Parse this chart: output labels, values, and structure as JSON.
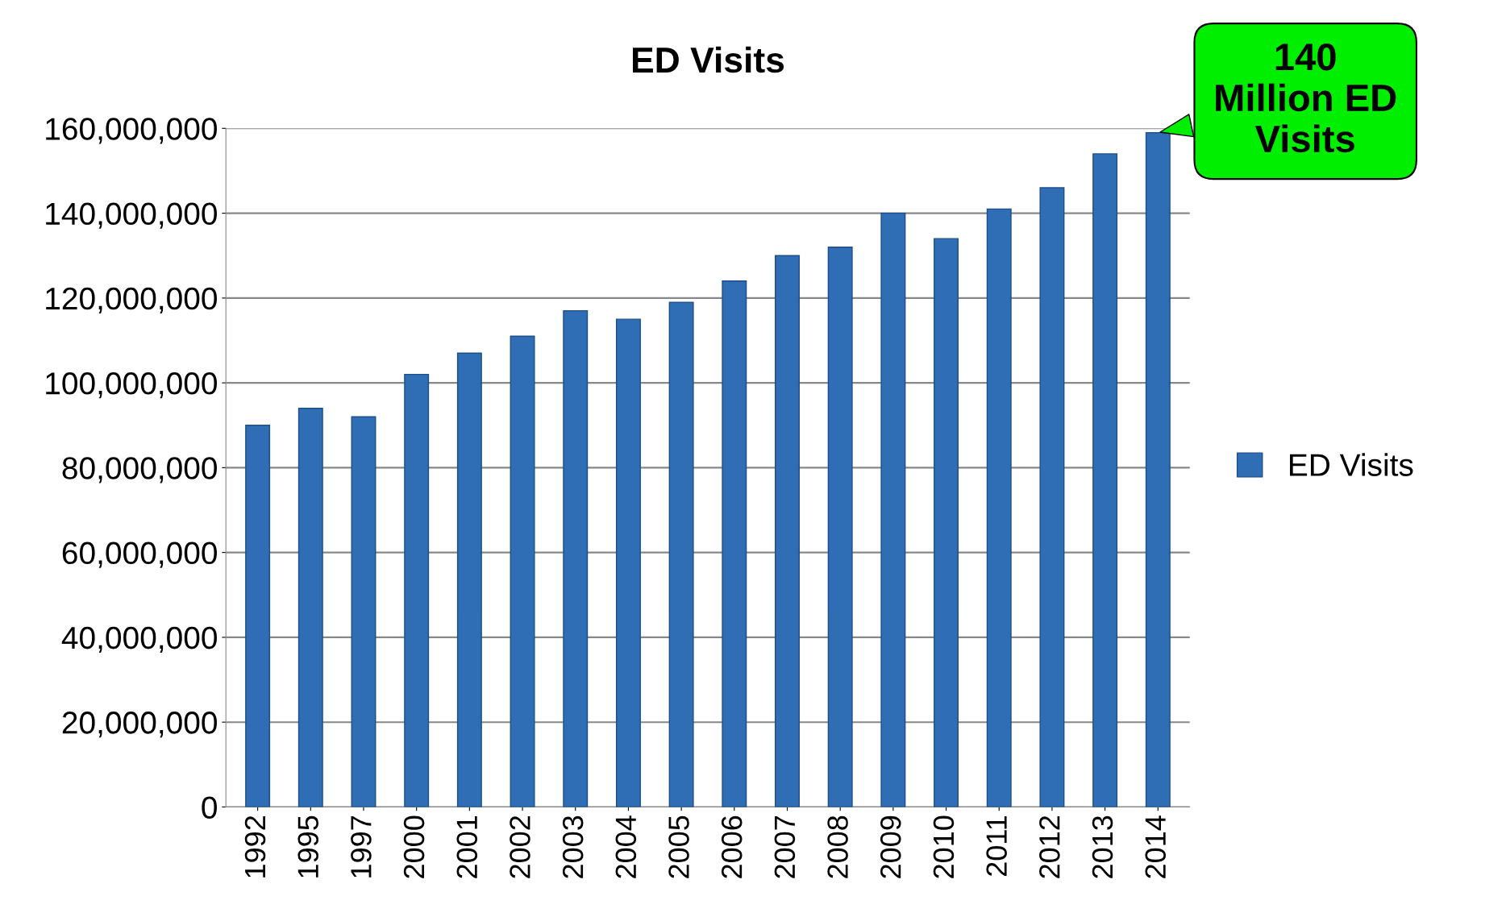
{
  "chart_data": {
    "type": "bar",
    "title": "ED Visits",
    "categories": [
      "1992",
      "1995",
      "1997",
      "2000",
      "2001",
      "2002",
      "2003",
      "2004",
      "2005",
      "2006",
      "2007",
      "2008",
      "2009",
      "2010",
      "2011",
      "2012",
      "2013",
      "2014"
    ],
    "series": [
      {
        "name": "ED Visits",
        "color": "#2f6db5",
        "values": [
          90000000,
          94000000,
          92000000,
          102000000,
          107000000,
          111000000,
          117000000,
          115000000,
          119000000,
          124000000,
          130000000,
          132000000,
          140000000,
          134000000,
          141000000,
          146000000,
          154000000,
          159000000
        ]
      }
    ],
    "ylim": [
      0,
      160000000
    ],
    "yticks": [
      {
        "value": 0,
        "label": "0"
      },
      {
        "value": 20000000,
        "label": "20,000,000"
      },
      {
        "value": 40000000,
        "label": "40,000,000"
      },
      {
        "value": 60000000,
        "label": "60,000,000"
      },
      {
        "value": 80000000,
        "label": "80,000,000"
      },
      {
        "value": 100000000,
        "label": "100,000,000"
      },
      {
        "value": 120000000,
        "label": "120,000,000"
      },
      {
        "value": 140000000,
        "label": "140,000,000"
      },
      {
        "value": 160000000,
        "label": "160,000,000"
      }
    ],
    "grid": "y",
    "legend": "right",
    "annotations": [
      {
        "text": "140\nMillion ED\nVisits",
        "x": "2014",
        "y": 159000000
      }
    ]
  }
}
